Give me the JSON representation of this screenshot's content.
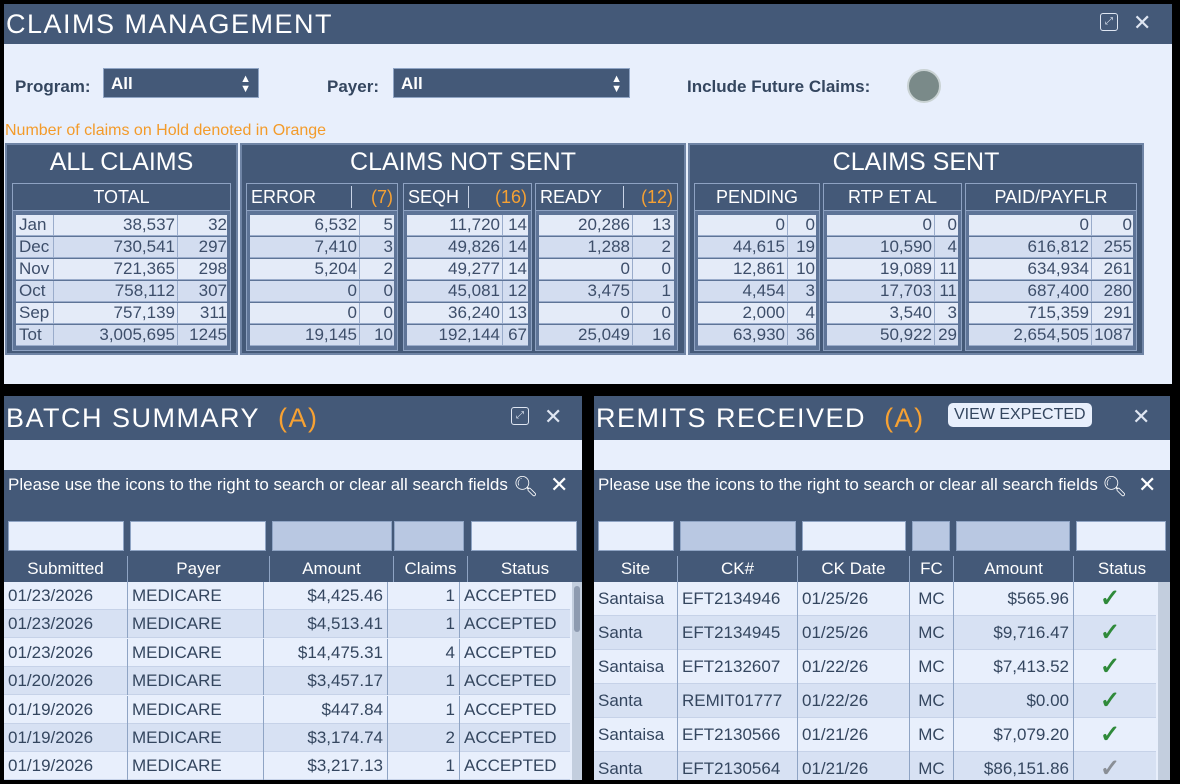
{
  "claims": {
    "title": "CLAIMS MANAGEMENT",
    "filters": {
      "program_label": "Program:",
      "program_value": "All",
      "payer_label": "Payer:",
      "payer_value": "All",
      "future_label": "Include Future Claims:"
    },
    "note": "Number of claims on Hold denoted in Orange",
    "groups": {
      "all": "ALL CLAIMS",
      "not_sent": "CLAIMS NOT SENT",
      "sent": "CLAIMS SENT"
    },
    "months": [
      "Jan",
      "Dec",
      "Nov",
      "Oct",
      "Sep",
      "Tot"
    ],
    "total": {
      "header": "TOTAL",
      "rows": [
        [
          "38,537",
          "32"
        ],
        [
          "730,541",
          "297"
        ],
        [
          "721,365",
          "298"
        ],
        [
          "758,112",
          "307"
        ],
        [
          "757,139",
          "311"
        ],
        [
          "3,005,695",
          "1245"
        ]
      ]
    },
    "error": {
      "header": "ERROR",
      "hold": "(7)",
      "rows": [
        [
          "6,532",
          "5"
        ],
        [
          "7,410",
          "3"
        ],
        [
          "5,204",
          "2"
        ],
        [
          "0",
          "0"
        ],
        [
          "0",
          "0"
        ],
        [
          "19,145",
          "10"
        ]
      ]
    },
    "seqh": {
      "header": "SEQH",
      "hold": "(16)",
      "rows": [
        [
          "11,720",
          "14"
        ],
        [
          "49,826",
          "14"
        ],
        [
          "49,277",
          "14"
        ],
        [
          "45,081",
          "12"
        ],
        [
          "36,240",
          "13"
        ],
        [
          "192,144",
          "67"
        ]
      ]
    },
    "ready": {
      "header": "READY",
      "hold": "(12)",
      "rows": [
        [
          "20,286",
          "13"
        ],
        [
          "1,288",
          "2"
        ],
        [
          "0",
          "0"
        ],
        [
          "3,475",
          "1"
        ],
        [
          "0",
          "0"
        ],
        [
          "25,049",
          "16"
        ]
      ]
    },
    "pending": {
      "header": "PENDING",
      "rows": [
        [
          "0",
          "0"
        ],
        [
          "44,615",
          "19"
        ],
        [
          "12,861",
          "10"
        ],
        [
          "4,454",
          "3"
        ],
        [
          "2,000",
          "4"
        ],
        [
          "63,930",
          "36"
        ]
      ]
    },
    "rtp": {
      "header": "RTP ET AL",
      "rows": [
        [
          "0",
          "0"
        ],
        [
          "10,590",
          "4"
        ],
        [
          "19,089",
          "11"
        ],
        [
          "17,703",
          "11"
        ],
        [
          "3,540",
          "3"
        ],
        [
          "50,922",
          "29"
        ]
      ]
    },
    "paid": {
      "header": "PAID/PAYFLR",
      "rows": [
        [
          "0",
          "0"
        ],
        [
          "616,812",
          "255"
        ],
        [
          "634,934",
          "261"
        ],
        [
          "687,400",
          "280"
        ],
        [
          "715,359",
          "291"
        ],
        [
          "2,654,505",
          "1087"
        ]
      ]
    }
  },
  "batch": {
    "title": "BATCH SUMMARY",
    "title_badge": "(A)",
    "message": "Please use the icons to the right to search or clear all search fields",
    "columns": [
      "Submitted",
      "Payer",
      "Amount",
      "Claims",
      "Status"
    ],
    "rows": [
      [
        "01/23/2026",
        "MEDICARE",
        "$4,425.46",
        "1",
        "ACCEPTED"
      ],
      [
        "01/23/2026",
        "MEDICARE",
        "$4,513.41",
        "1",
        "ACCEPTED"
      ],
      [
        "01/23/2026",
        "MEDICARE",
        "$14,475.31",
        "4",
        "ACCEPTED"
      ],
      [
        "01/20/2026",
        "MEDICARE",
        "$3,457.17",
        "1",
        "ACCEPTED"
      ],
      [
        "01/19/2026",
        "MEDICARE",
        "$447.84",
        "1",
        "ACCEPTED"
      ],
      [
        "01/19/2026",
        "MEDICARE",
        "$3,174.74",
        "2",
        "ACCEPTED"
      ],
      [
        "01/19/2026",
        "MEDICARE",
        "$3,217.13",
        "1",
        "ACCEPTED"
      ]
    ]
  },
  "remits": {
    "title": "REMITS RECEIVED",
    "title_badge": "(A)",
    "view_expected": "VIEW EXPECTED",
    "message": "Please use the icons to the right to search or clear all search fields",
    "columns": [
      "Site",
      "CK#",
      "CK Date",
      "FC",
      "Amount",
      "Status"
    ],
    "rows": [
      [
        "Santaisa",
        "EFT2134946",
        "01/25/26",
        "MC",
        "$565.96",
        "✓"
      ],
      [
        "Santa",
        "EFT2134945",
        "01/25/26",
        "MC",
        "$9,716.47",
        "✓"
      ],
      [
        "Santaisa",
        "EFT2132607",
        "01/22/26",
        "MC",
        "$7,413.52",
        "✓"
      ],
      [
        "Santa",
        "REMIT01777",
        "01/22/26",
        "MC",
        "$0.00",
        "✓"
      ],
      [
        "Santaisa",
        "EFT2130566",
        "01/21/26",
        "MC",
        "$7,079.20",
        "✓"
      ],
      [
        "Santa",
        "EFT2130564",
        "01/21/26",
        "MC",
        "$86,151.86",
        "✓"
      ]
    ]
  },
  "icons": {
    "expand": "expand-icon",
    "close": "close-icon",
    "search": "search-icon",
    "check": "checkmark-icon"
  },
  "colors": {
    "header_bg": "#445978",
    "panel_bg": "#e8effc",
    "accent_orange": "#f6a133",
    "check_green": "#2f8a3a"
  }
}
